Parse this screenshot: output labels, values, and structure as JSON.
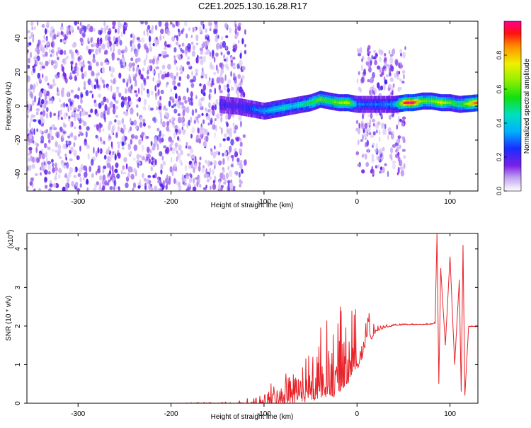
{
  "title": "C2E1.2025.130.16.28.R17",
  "chart_data": [
    {
      "type": "heatmap",
      "xlabel": "Height of straight line (km)",
      "ylabel": "Frequency (Hz)",
      "xlim": [
        -355,
        130
      ],
      "ylim": [
        -50,
        50
      ],
      "xticks": [
        -300,
        -200,
        -100,
        0,
        100
      ],
      "yticks": [
        -40,
        -20,
        0,
        20,
        40
      ],
      "colorbar": {
        "label": "Normalized spectral amplitude",
        "range": [
          0,
          1
        ],
        "ticks": [
          0.0,
          0.2,
          0.4,
          0.6,
          0.8
        ]
      },
      "regions": [
        {
          "x_from": -355,
          "x_to": -120,
          "freq_from": -50,
          "freq_to": 50,
          "amplitude": "low (0.05–0.2)"
        },
        {
          "x_from": 0,
          "x_to": 52,
          "freq_from": -40,
          "freq_to": 35,
          "amplitude": "low (0.05–0.2)"
        }
      ],
      "ridge": {
        "x": [
          -148,
          -130,
          -120,
          -110,
          -100,
          -90,
          -80,
          -70,
          -60,
          -50,
          -40,
          -30,
          -20,
          -10,
          0,
          10,
          20,
          30,
          40,
          52,
          60,
          70,
          80,
          90,
          100,
          110,
          130
        ],
        "freq": [
          1,
          0,
          -1,
          -2,
          -3,
          -2,
          -1,
          0,
          1,
          2,
          4,
          3,
          2,
          2,
          1,
          1,
          1,
          1,
          1,
          2,
          2,
          3,
          3,
          2,
          2,
          1,
          2
        ],
        "peak_amplitude": [
          0.2,
          0.2,
          0.25,
          0.3,
          0.35,
          0.4,
          0.45,
          0.4,
          0.45,
          0.55,
          0.6,
          0.55,
          0.65,
          0.7,
          0.3,
          0.3,
          0.3,
          0.3,
          0.35,
          0.98,
          0.98,
          0.6,
          0.6,
          0.75,
          0.6,
          0.5,
          0.95
        ]
      }
    },
    {
      "type": "line",
      "xlabel": "Height of straight line (km)",
      "ylabel": "SNR (10 * v/v)",
      "yexponent": "(x10",
      "yexponent_power": "4",
      "yexponent_close": ")",
      "xlim": [
        -355,
        130
      ],
      "ylim": [
        0,
        4.4
      ],
      "xticks": [
        -300,
        -200,
        -100,
        0,
        100
      ],
      "yticks": [
        0,
        1,
        2,
        3,
        4
      ],
      "series": [
        {
          "color": "#e8232a",
          "x": [
            -355,
            -200,
            -130,
            -110,
            -100,
            -90,
            -80,
            -70,
            -60,
            -50,
            -45,
            -40,
            -35,
            -30,
            -25,
            -20,
            -15,
            -10,
            -5,
            0,
            5,
            10,
            13,
            15,
            20,
            30,
            40,
            50,
            60,
            70,
            80,
            84,
            86,
            88,
            90,
            95,
            100,
            105,
            110,
            112,
            114,
            116,
            120,
            130
          ],
          "y": [
            0,
            0,
            0.02,
            0.05,
            0.15,
            0.3,
            0.45,
            0.55,
            0.75,
            0.9,
            1.0,
            1.15,
            1.25,
            1.35,
            1.3,
            1.45,
            1.5,
            1.6,
            1.7,
            1.75,
            1.8,
            1.95,
            2.2,
            1.85,
            1.95,
            2.0,
            2.03,
            2.05,
            2.05,
            2.05,
            2.07,
            2.1,
            4.4,
            0.5,
            3.5,
            1.5,
            3.8,
            1.0,
            3.2,
            0.3,
            4.1,
            0.2,
            2.0,
            2.0
          ],
          "noise_amplitude": [
            0,
            0,
            0.05,
            0.2,
            0.35,
            0.45,
            0.6,
            0.7,
            0.9,
            1.1,
            1.2,
            1.3,
            1.4,
            1.4,
            1.5,
            1.5,
            1.4,
            1.4,
            1.2,
            1.1,
            0.9,
            0.6,
            0.4,
            0.3,
            0.15,
            0.05,
            0.03,
            0.02,
            0.02,
            0.02,
            0.03,
            0.05,
            0,
            0,
            0,
            0,
            0,
            0,
            0,
            0,
            0,
            0,
            0.02,
            0.02
          ]
        }
      ]
    }
  ]
}
